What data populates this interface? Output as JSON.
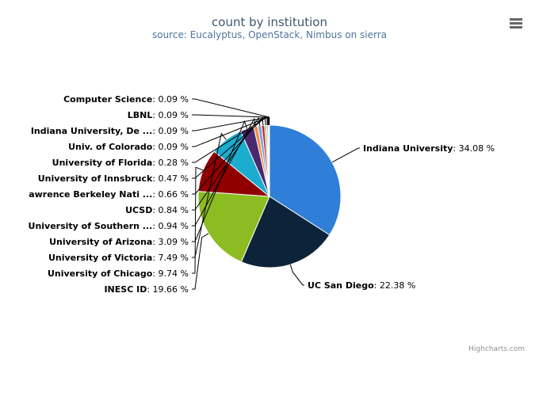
{
  "chart_data": {
    "type": "pie",
    "title": "count by institution",
    "subtitle": "source: Eucalyptus, OpenStack, Nimbus on sierra",
    "slices": [
      {
        "name": "Indiana University",
        "display": "Indiana University",
        "value": 34.08,
        "color": "#2f7ed8"
      },
      {
        "name": "UC San Diego",
        "display": "UC San Diego",
        "value": 22.38,
        "color": "#0d233a"
      },
      {
        "name": "INESC ID",
        "display": "INESC ID",
        "value": 19.66,
        "color": "#8bbc21"
      },
      {
        "name": "University of Chicago",
        "display": "University of Chicago",
        "value": 9.74,
        "color": "#910000"
      },
      {
        "name": "University of Victoria",
        "display": "University of Victoria",
        "value": 7.49,
        "color": "#1aadce"
      },
      {
        "name": "University of Arizona",
        "display": "University of Arizona",
        "value": 3.09,
        "color": "#492970"
      },
      {
        "name": "University of Southern ...",
        "display": "University of Southern ...",
        "value": 0.94,
        "color": "#f28f43"
      },
      {
        "name": "UCSD",
        "display": "UCSD",
        "value": 0.84,
        "color": "#77a1e5"
      },
      {
        "name": "Lawrence Berkeley Nati ...",
        "display": "awrence Berkeley Nati ...",
        "value": 0.66,
        "color": "#c42525"
      },
      {
        "name": "University of Innsbruck",
        "display": "University of Innsbruck",
        "value": 0.47,
        "color": "#a6c96a"
      },
      {
        "name": "University of Florida",
        "display": "University of Florida",
        "value": 0.28,
        "color": "#2f7ed8"
      },
      {
        "name": "Univ. of Colorado",
        "display": "Univ. of Colorado",
        "value": 0.09,
        "color": "#0d233a"
      },
      {
        "name": "Indiana University, De ...",
        "display": "Indiana University, De ...",
        "value": 0.09,
        "color": "#8bbc21"
      },
      {
        "name": "LBNL",
        "display": "LBNL",
        "value": 0.09,
        "color": "#910000"
      },
      {
        "name": "Computer Science",
        "display": "Computer Science",
        "value": 0.09,
        "color": "#1aadce"
      }
    ],
    "value_suffix": " %",
    "legend": "none"
  },
  "credits": "Highcharts.com",
  "menu_icon": "hamburger-menu-icon"
}
